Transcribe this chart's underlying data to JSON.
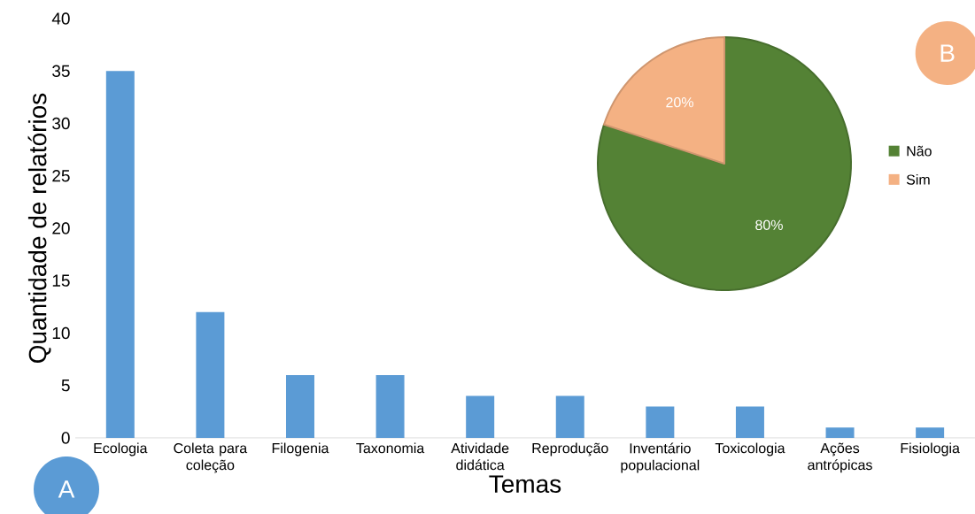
{
  "chart_data": [
    {
      "type": "bar",
      "xlabel": "Temas",
      "ylabel": "Quantidade de relatórios",
      "categories": [
        "Ecologia",
        "Coleta para coleção",
        "Filogenia",
        "Taxonomia",
        "Atividade didática",
        "Reprodução",
        "Inventário populacional",
        "Toxicologia",
        "Ações antrópicas",
        "Fisiologia"
      ],
      "values": [
        35,
        12,
        6,
        6,
        4,
        4,
        3,
        3,
        1,
        1
      ],
      "color": "#5b9bd5",
      "ylim": [
        0,
        40
      ],
      "yticks": [
        0,
        5,
        10,
        15,
        20,
        25,
        30,
        35,
        40
      ],
      "annotations": [
        "A"
      ]
    },
    {
      "type": "pie",
      "categories": [
        "Não",
        "Sim"
      ],
      "values": [
        80,
        20
      ],
      "colors": [
        "#548235",
        "#f4b183"
      ],
      "value_labels": [
        "80%",
        "20%"
      ],
      "legend": "right",
      "annotations": [
        "B"
      ]
    }
  ]
}
